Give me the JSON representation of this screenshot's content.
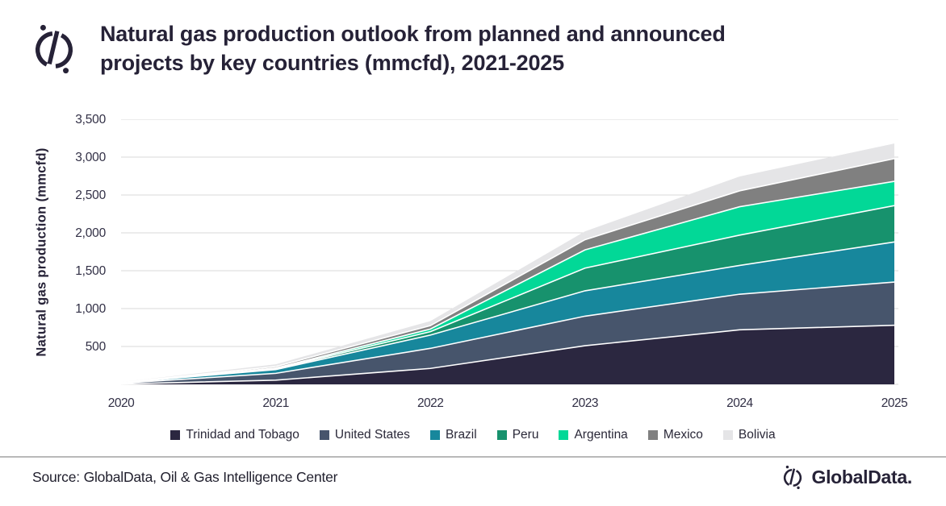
{
  "header": {
    "title_lines": [
      "Natural gas production outlook from planned and announced",
      "projects by key countries (mmcfd), 2021-2025"
    ]
  },
  "chart_data": {
    "type": "area",
    "stacked": true,
    "title": "Natural gas production outlook from planned and announced projects by key countries (mmcfd), 2021-2025",
    "xlabel": "",
    "ylabel": "Natural gas production (mmcfd)",
    "x": [
      2020,
      2021,
      2022,
      2023,
      2024,
      2025
    ],
    "series": [
      {
        "name": "Trinidad and Tobago",
        "color": "#2b2740",
        "values": [
          5,
          55,
          210,
          510,
          720,
          780
        ]
      },
      {
        "name": "United States",
        "color": "#47556c",
        "values": [
          10,
          90,
          265,
          390,
          470,
          570
        ]
      },
      {
        "name": "Brazil",
        "color": "#17879c",
        "values": [
          5,
          50,
          175,
          335,
          380,
          530
        ]
      },
      {
        "name": "Peru",
        "color": "#17926d",
        "values": [
          0,
          10,
          45,
          300,
          400,
          480
        ]
      },
      {
        "name": "Argentina",
        "color": "#02d897",
        "values": [
          0,
          10,
          35,
          240,
          375,
          320
        ]
      },
      {
        "name": "Mexico",
        "color": "#808080",
        "values": [
          5,
          20,
          45,
          135,
          210,
          300
        ]
      },
      {
        "name": "Bolivia",
        "color": "#e5e5e7",
        "values": [
          5,
          30,
          60,
          110,
          190,
          200
        ]
      }
    ],
    "totals_by_year": [
      30,
      265,
      835,
      2020,
      2745,
      3180
    ],
    "ylim": [
      0,
      3500
    ],
    "yticks": [
      500,
      1000,
      1500,
      2000,
      2500,
      3000,
      3500
    ],
    "grid": "horizontal",
    "gridline_color": "#d9d9d9",
    "separator_color": "#ffffff",
    "legend_position": "bottom"
  },
  "footer": {
    "source": "Source: GlobalData, Oil & Gas Intelligence Center",
    "brand": "GlobalData."
  },
  "colors": {
    "title_text": "#262237",
    "axis_text": "#312f45",
    "divider": "#b9b9b9"
  }
}
